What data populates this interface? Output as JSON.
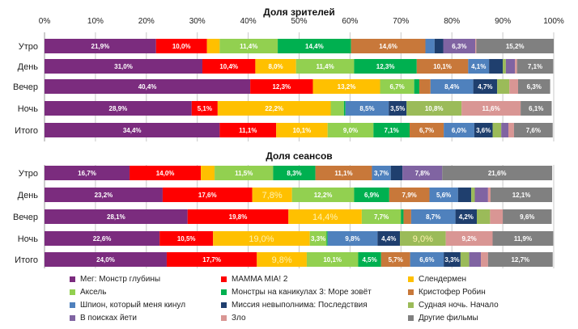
{
  "chart_data": [
    {
      "type": "bar",
      "orientation": "horizontal",
      "stacked": "percent",
      "title": "Доля зрителей",
      "categories": [
        "Утро",
        "День",
        "Вечер",
        "Ночь",
        "Итого"
      ],
      "xlim": [
        0,
        100
      ],
      "x_ticks": [
        "0%",
        "10%",
        "20%",
        "30%",
        "40%",
        "50%",
        "60%",
        "70%",
        "80%",
        "90%",
        "100%"
      ],
      "grid": true,
      "series": [
        {
          "name": "Мег: Монстр глубины",
          "values": [
            21.9,
            31.0,
            40.4,
            28.9,
            34.4
          ],
          "labels": [
            "21,9%",
            "31,0%",
            "40,4%",
            "28,9%",
            "34,4%"
          ]
        },
        {
          "name": "MAMMA MIA! 2",
          "values": [
            10.0,
            10.4,
            12.3,
            5.1,
            11.1
          ],
          "labels": [
            "10,0%",
            "10,4%",
            "12,3%",
            "5,1%",
            "11,1%"
          ]
        },
        {
          "name": "Слендермен",
          "values": [
            2.5,
            8.0,
            13.2,
            22.2,
            10.1
          ],
          "labels": [
            "",
            "8,0%",
            "13,2%",
            "22,2%",
            "10,1%"
          ]
        },
        {
          "name": "Аксель",
          "values": [
            11.4,
            11.4,
            6.7,
            2.6,
            9.0
          ],
          "labels": [
            "11,4%",
            "11,4%",
            "6,7%",
            "",
            "9,0%"
          ]
        },
        {
          "name": "Монстры на каникулах 3: Море зовёт",
          "values": [
            14.4,
            12.3,
            1.0,
            0.3,
            7.1
          ],
          "labels": [
            "14,4%",
            "12,3%",
            "",
            "",
            "7,1%"
          ]
        },
        {
          "name": "Кристофер Робин",
          "values": [
            14.6,
            10.1,
            2.2,
            0,
            6.7
          ],
          "labels": [
            "14,6%",
            "10,1%",
            "",
            "",
            "6,7%"
          ]
        },
        {
          "name": "Шпион, который меня кинул",
          "values": [
            1.8,
            4.1,
            8.4,
            8.5,
            6.0
          ],
          "labels": [
            "",
            "4,1%",
            "8,4%",
            "8,5%",
            "6,0%"
          ]
        },
        {
          "name": "Миссия невыполнима: Последствия",
          "values": [
            1.7,
            2.7,
            4.7,
            3.5,
            3.6
          ],
          "labels": [
            "",
            "",
            "4,7%",
            "3,5%",
            "3,6%"
          ]
        },
        {
          "name": "Судная ночь. Начало",
          "values": [
            0,
            0.6,
            2.4,
            10.8,
            1.7
          ],
          "labels": [
            "",
            "",
            "",
            "10,8%",
            ""
          ]
        },
        {
          "name": "В поисках йети",
          "values": [
            6.3,
            1.8,
            0,
            0,
            1.4
          ],
          "labels": [
            "6,3%",
            "",
            "",
            "",
            ""
          ]
        },
        {
          "name": "Зло",
          "values": [
            0.2,
            0.4,
            1.7,
            11.6,
            1.1
          ],
          "labels": [
            "",
            "",
            "",
            "11,6%",
            ""
          ]
        },
        {
          "name": "Другие фильмы",
          "values": [
            15.2,
            7.1,
            6.3,
            6.1,
            7.6
          ],
          "labels": [
            "15,2%",
            "7,1%",
            "6,3%",
            "6,1%",
            "7,6%"
          ]
        }
      ]
    },
    {
      "type": "bar",
      "orientation": "horizontal",
      "stacked": "percent",
      "title": "Доля сеансов",
      "categories": [
        "Утро",
        "День",
        "Вечер",
        "Ночь",
        "Итого"
      ],
      "xlim": [
        0,
        100
      ],
      "grid": true,
      "series": [
        {
          "name": "Мег: Монстр глубины",
          "values": [
            16.7,
            23.2,
            28.1,
            22.6,
            24.0
          ],
          "labels": [
            "16,7%",
            "23,2%",
            "28,1%",
            "22,6%",
            "24,0%"
          ]
        },
        {
          "name": "MAMMA MIA! 2",
          "values": [
            14.0,
            17.6,
            19.8,
            10.5,
            17.7
          ],
          "labels": [
            "14,0%",
            "17,6%",
            "19,8%",
            "10,5%",
            "17,7%"
          ]
        },
        {
          "name": "Слендермен",
          "values": [
            2.7,
            7.8,
            14.4,
            19.0,
            9.8
          ],
          "labels": [
            "",
            "7,8%",
            "14,4%",
            "19,0%",
            "9,8%"
          ]
        },
        {
          "name": "Аксель",
          "values": [
            11.5,
            12.2,
            7.7,
            3.3,
            10.1
          ],
          "labels": [
            "11,5%",
            "12,2%",
            "7,7%",
            "3,3%",
            "10,1%"
          ]
        },
        {
          "name": "Монстры на каникулах 3: Море зовёт",
          "values": [
            8.3,
            6.9,
            0.5,
            0.2,
            4.5
          ],
          "labels": [
            "8,3%",
            "6,9%",
            "",
            "",
            "4,5%"
          ]
        },
        {
          "name": "Кристофер Робин",
          "values": [
            11.1,
            7.9,
            1.5,
            0,
            5.7
          ],
          "labels": [
            "11,1%",
            "7,9%",
            "",
            "",
            "5,7%"
          ]
        },
        {
          "name": "Шпион, который меня кинул",
          "values": [
            3.7,
            5.6,
            8.7,
            9.8,
            6.6
          ],
          "labels": [
            "3,7%",
            "5,6%",
            "8,7%",
            "9,8%",
            "6,6%"
          ]
        },
        {
          "name": "Миссия невыполнима: Последствия",
          "values": [
            2.3,
            2.6,
            4.2,
            4.4,
            3.3
          ],
          "labels": [
            "",
            "",
            "4,2%",
            "4,4%",
            "3,3%"
          ]
        },
        {
          "name": "Судная ночь. Начало",
          "values": [
            0,
            0.7,
            2.6,
            9.0,
            1.7
          ],
          "labels": [
            "",
            "",
            "",
            "9,0%",
            ""
          ]
        },
        {
          "name": "В поисках йети",
          "values": [
            7.8,
            2.6,
            0,
            0,
            2.3
          ],
          "labels": [
            "7,8%",
            "",
            "",
            "",
            ""
          ]
        },
        {
          "name": "Зло",
          "values": [
            0,
            0.5,
            2.5,
            9.2,
            1.4
          ],
          "labels": [
            "",
            "",
            "",
            "9,2%",
            ""
          ]
        },
        {
          "name": "Другие фильмы",
          "values": [
            21.6,
            12.1,
            9.6,
            11.9,
            12.7
          ],
          "labels": [
            "21,6%",
            "12,1%",
            "9,6%",
            "11,9%",
            "12,7%"
          ]
        }
      ]
    }
  ],
  "colors": [
    "#7B2C7E",
    "#FF0000",
    "#FFC000",
    "#92D050",
    "#00B050",
    "#C8783A",
    "#4F81BD",
    "#1F3F6E",
    "#9BBB59",
    "#8064A2",
    "#D99694",
    "#808080"
  ],
  "legend": [
    "Мег: Монстр глубины",
    "MAMMA MIA! 2",
    "Слендермен",
    "Аксель",
    "Монстры на каникулах 3: Море зовёт",
    "Кристофер Робин",
    "Шпион, который меня кинул",
    "Миссия невыполнима: Последствия",
    "Судная ночь. Начало",
    "В поисках йети",
    "Зло",
    "Другие фильмы"
  ]
}
